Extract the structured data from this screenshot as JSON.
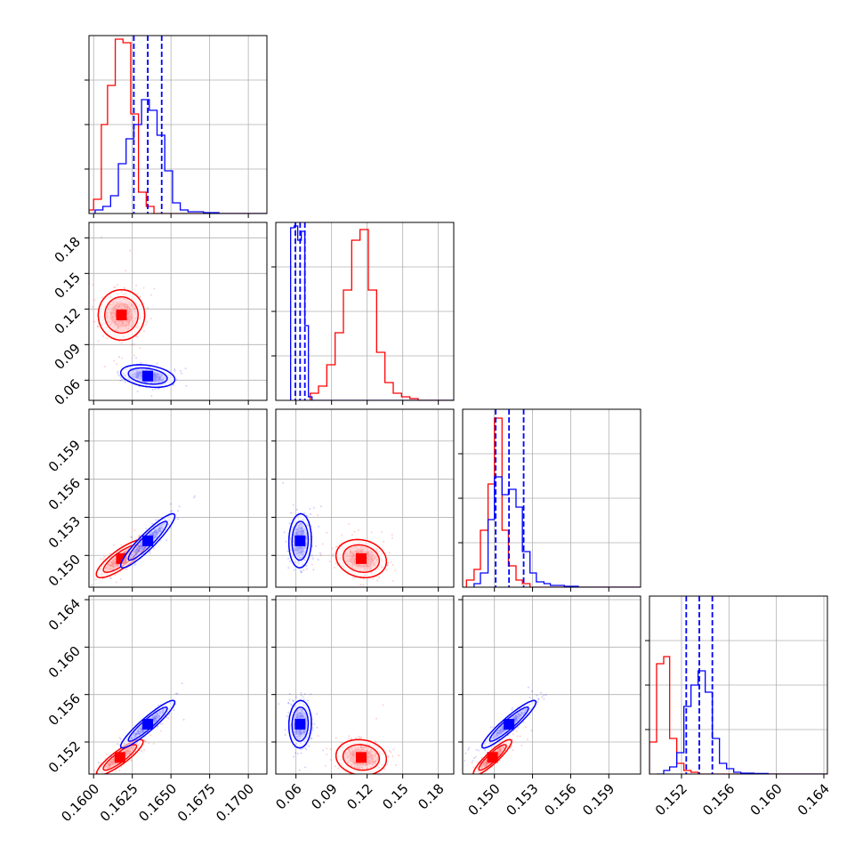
{
  "colors": {
    "series_a": "#ff0000",
    "series_b": "#0000ff",
    "grid": "#b0b0b0",
    "frame": "#000000"
  },
  "chart_data": {
    "type": "corner",
    "params": [
      {
        "id": "p1",
        "range": [
          0.1597,
          0.1712
        ],
        "ticks": [
          0.16,
          0.1625,
          0.165,
          0.1675,
          0.17
        ],
        "tick_labels": [
          "0.1600",
          "0.1625",
          "0.1650",
          "0.1675",
          "0.1700"
        ]
      },
      {
        "id": "p2",
        "range": [
          0.043,
          0.193
        ],
        "ticks": [
          0.06,
          0.09,
          0.12,
          0.15,
          0.18
        ],
        "tick_labels": [
          "0.06",
          "0.09",
          "0.12",
          "0.15",
          "0.18"
        ]
      },
      {
        "id": "p3",
        "range": [
          0.1475,
          0.1615
        ],
        "ticks": [
          0.15,
          0.153,
          0.156,
          0.159
        ],
        "tick_labels": [
          "0.150",
          "0.153",
          "0.156",
          "0.159"
        ]
      },
      {
        "id": "p4",
        "range": [
          0.1493,
          0.1643
        ],
        "ticks": [
          0.152,
          0.156,
          0.16,
          0.164
        ],
        "tick_labels": [
          "0.152",
          "0.156",
          "0.160",
          "0.164"
        ]
      }
    ],
    "series": [
      {
        "color": "#ff0000",
        "hist1d": [
          {
            "bin_edges": [
              0.1597,
              0.16,
              0.1605,
              0.1609,
              0.1614,
              0.1619,
              0.1624,
              0.1629,
              0.1634,
              0.1639,
              0.1644
            ],
            "counts": [
              0.02,
              0.08,
              0.5,
              0.72,
              0.98,
              0.96,
              0.56,
              0.12,
              0.04,
              0.0
            ]
          },
          {
            "bin_edges": [
              0.072,
              0.079,
              0.086,
              0.093,
              0.1,
              0.107,
              0.114,
              0.121,
              0.128,
              0.135,
              0.142,
              0.149,
              0.156,
              0.163,
              0.17
            ],
            "counts": [
              0.04,
              0.08,
              0.2,
              0.38,
              0.62,
              0.9,
              0.96,
              0.62,
              0.27,
              0.1,
              0.04,
              0.02,
              0.01,
              0.0
            ]
          },
          {
            "bin_edges": [
              0.1478,
              0.1484,
              0.1489,
              0.1495,
              0.15,
              0.1506,
              0.1511,
              0.1517,
              0.1522,
              0.1528,
              0.1533,
              0.1539
            ],
            "counts": [
              0.04,
              0.1,
              0.32,
              0.58,
              0.95,
              0.32,
              0.12,
              0.04,
              0.02,
              0.0,
              0.0
            ]
          },
          {
            "bin_edges": [
              0.1493,
              0.1499,
              0.1505,
              0.151,
              0.1516,
              0.1522,
              0.1528,
              0.1534,
              0.154,
              0.1546,
              0.1552,
              0.1558,
              0.1564
            ],
            "counts": [
              0.18,
              0.62,
              0.66,
              0.2,
              0.06,
              0.02,
              0.01,
              0.0,
              0.0,
              0.0,
              0.0,
              0.0
            ]
          }
        ],
        "contours": [
          {
            "row": 1,
            "col": 0,
            "mean": [
              0.1618,
              0.115
            ],
            "sd": [
              0.0006,
              0.0085
            ],
            "rho": 0.0
          },
          {
            "row": 2,
            "col": 0,
            "mean": [
              0.1618,
              0.14975
            ],
            "sd": [
              0.00065,
              0.0006
            ],
            "rho": 0.82
          },
          {
            "row": 2,
            "col": 1,
            "mean": [
              0.115,
              0.14975
            ],
            "sd": [
              0.0085,
              0.0006
            ],
            "rho": -0.15
          },
          {
            "row": 3,
            "col": 0,
            "mean": [
              0.1617,
              0.1507
            ],
            "sd": [
              0.0006,
              0.0006
            ],
            "rho": 0.88
          },
          {
            "row": 3,
            "col": 1,
            "mean": [
              0.115,
              0.1507
            ],
            "sd": [
              0.0085,
              0.0006
            ],
            "rho": -0.1
          },
          {
            "row": 3,
            "col": 2,
            "mean": [
              0.14985,
              0.1507
            ],
            "sd": [
              0.0006,
              0.0006
            ],
            "rho": 0.9
          }
        ]
      },
      {
        "color": "#0000ff",
        "hist1d": [
          {
            "bin_edges": [
              0.1601,
              0.1606,
              0.1611,
              0.1616,
              0.1621,
              0.1626,
              0.1631,
              0.1636,
              0.1641,
              0.1646,
              0.1651,
              0.1656,
              0.1661,
              0.1666,
              0.1671,
              0.1681,
              0.1691
            ],
            "counts": [
              0.02,
              0.04,
              0.1,
              0.28,
              0.42,
              0.5,
              0.64,
              0.58,
              0.44,
              0.24,
              0.06,
              0.02,
              0.01,
              0.01,
              0.005,
              0.0
            ]
          },
          {
            "bin_edges": [
              0.0555,
              0.0585,
              0.0615,
              0.0645,
              0.0675,
              0.0705,
              0.0735,
              0.0765
            ],
            "counts": [
              0.97,
              0.98,
              0.9,
              0.95,
              0.42,
              0.02,
              0.0
            ]
          },
          {
            "bin_edges": [
              0.1484,
              0.1489,
              0.1495,
              0.15,
              0.1506,
              0.1511,
              0.1517,
              0.1522,
              0.1528,
              0.1533,
              0.1539,
              0.1544,
              0.1555,
              0.1566,
              0.1577
            ],
            "counts": [
              0.02,
              0.08,
              0.38,
              0.62,
              0.52,
              0.55,
              0.45,
              0.2,
              0.08,
              0.03,
              0.02,
              0.01,
              0.005,
              0.0
            ]
          },
          {
            "bin_edges": [
              0.1499,
              0.1505,
              0.151,
              0.1516,
              0.1522,
              0.1528,
              0.1534,
              0.154,
              0.1546,
              0.1552,
              0.1558,
              0.1564,
              0.157,
              0.1581,
              0.1593,
              0.1605,
              0.1617
            ],
            "counts": [
              0.0,
              0.02,
              0.04,
              0.12,
              0.38,
              0.5,
              0.58,
              0.46,
              0.2,
              0.06,
              0.03,
              0.01,
              0.005,
              0.003,
              0.0,
              0.0
            ]
          }
        ],
        "quantiles": [
          [
            0.1626,
            0.1635,
            0.1644
          ],
          [
            0.0595,
            0.0635,
            0.0675
          ],
          [
            0.1501,
            0.15115,
            0.1523
          ],
          [
            0.1524,
            0.1535,
            0.1546
          ]
        ],
        "contours": [
          {
            "row": 1,
            "col": 0,
            "mean": [
              0.1635,
              0.0635
            ],
            "sd": [
              0.0007,
              0.0038
            ],
            "rho": -0.3
          },
          {
            "row": 2,
            "col": 0,
            "mean": [
              0.1635,
              0.15115
            ],
            "sd": [
              0.0007,
              0.00085
            ],
            "rho": 0.92
          },
          {
            "row": 2,
            "col": 1,
            "mean": [
              0.0635,
              0.15115
            ],
            "sd": [
              0.0038,
              0.00085
            ],
            "rho": 0.05
          },
          {
            "row": 3,
            "col": 0,
            "mean": [
              0.1635,
              0.1535
            ],
            "sd": [
              0.0007,
              0.0008
            ],
            "rho": 0.93
          },
          {
            "row": 3,
            "col": 1,
            "mean": [
              0.0635,
              0.1535
            ],
            "sd": [
              0.0038,
              0.0008
            ],
            "rho": 0.05
          },
          {
            "row": 3,
            "col": 2,
            "mean": [
              0.15115,
              0.1535
            ],
            "sd": [
              0.00085,
              0.0008
            ],
            "rho": 0.93
          }
        ]
      }
    ]
  }
}
